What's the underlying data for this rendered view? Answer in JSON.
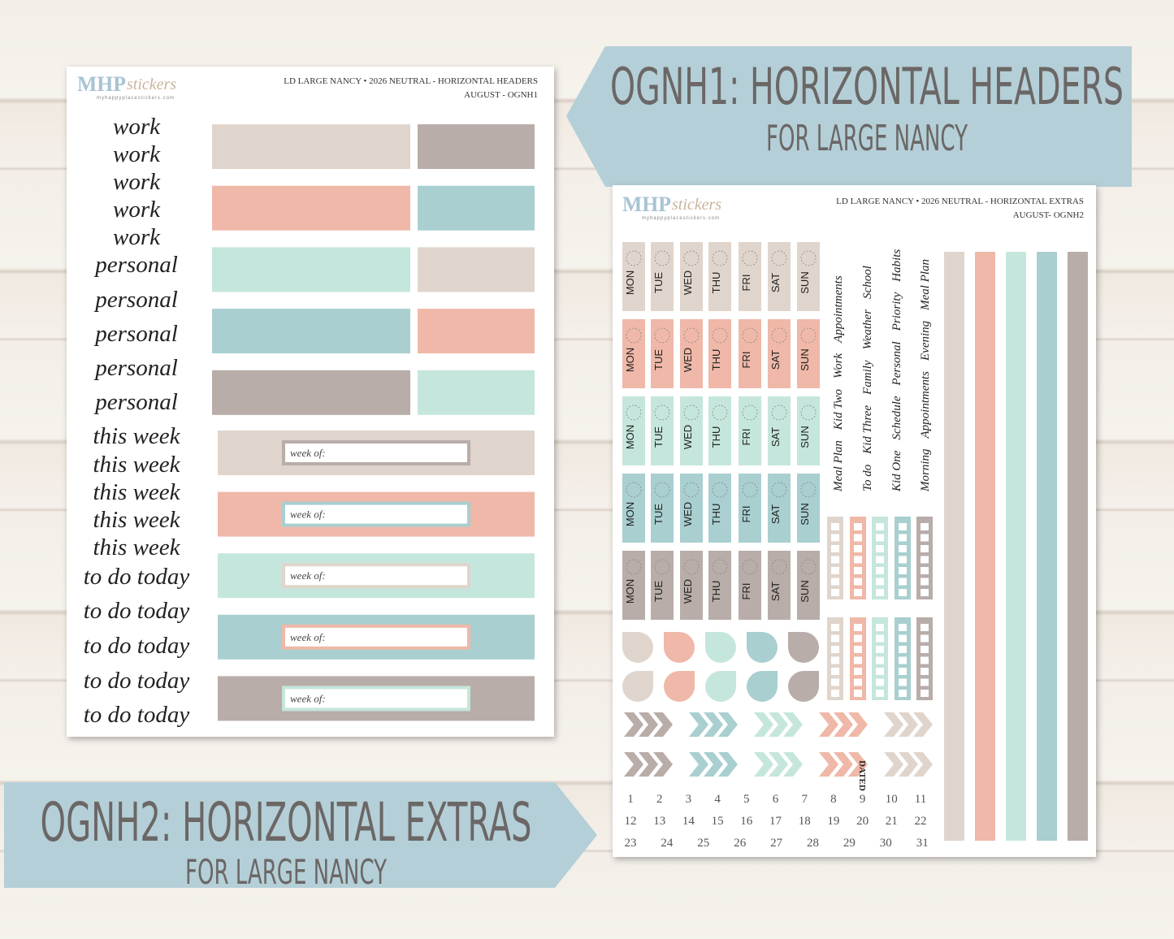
{
  "banner_headers": {
    "title": "OGNH1: HORIZONTAL HEADERS",
    "subtitle": "FOR LARGE NANCY"
  },
  "banner_extras": {
    "title": "OGNH2: HORIZONTAL EXTRAS",
    "subtitle": "FOR LARGE NANCY"
  },
  "logo": {
    "brand": "MHP",
    "brand_suffix": "stickers",
    "url": "myhappyplacestickers.com"
  },
  "sheet_headers": {
    "header": [
      "LD LARGE NANCY • 2026 NEUTRAL - HORIZONTAL HEADERS",
      "AUGUST - OGNH1"
    ],
    "words": [
      "work",
      "work",
      "work",
      "work",
      "work",
      "personal",
      "personal",
      "personal",
      "personal",
      "personal",
      "this week",
      "this week",
      "this week",
      "this week",
      "this week",
      "to do today",
      "to do today",
      "to do today",
      "to do today",
      "to do today"
    ],
    "week_labels": [
      "week of:",
      "week of:",
      "week of:",
      "week of:",
      "week of:"
    ]
  },
  "sheet_extras": {
    "header": [
      "LD LARGE NANCY • 2026 NEUTRAL - HORIZONTAL EXTRAS",
      "AUGUST- OGNH2"
    ],
    "days": [
      "MON",
      "TUE",
      "WED",
      "THU",
      "FRI",
      "SAT",
      "SUN"
    ],
    "label_columns": [
      [
        "Meal Plan",
        "Kid Two",
        "Work",
        "Appointments"
      ],
      [
        "To do",
        "Kid Three",
        "Family",
        "Weather",
        "School"
      ],
      [
        "Kid One",
        "Schedule",
        "Personal",
        "Priority",
        "Habits"
      ],
      [
        "Morning",
        "Appointments",
        "Evening",
        "Meal Plan"
      ]
    ],
    "dated": "DATED",
    "dates": [
      "1",
      "2",
      "3",
      "4",
      "5",
      "6",
      "7",
      "8",
      "9",
      "10",
      "11",
      "12",
      "13",
      "14",
      "15",
      "16",
      "17",
      "18",
      "19",
      "20",
      "21",
      "22",
      "23",
      "24",
      "25",
      "26",
      "27",
      "28",
      "29",
      "30",
      "31"
    ]
  }
}
